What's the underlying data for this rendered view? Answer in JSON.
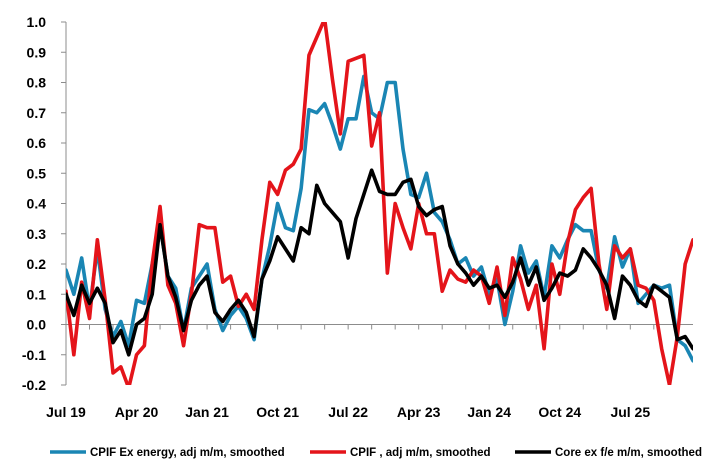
{
  "chart_data": {
    "type": "line",
    "title": "",
    "xlabel": "",
    "ylabel": "",
    "ylim": [
      -0.2,
      1.0
    ],
    "yticks": [
      -0.2,
      -0.1,
      0.0,
      0.1,
      0.2,
      0.3,
      0.4,
      0.5,
      0.6,
      0.7,
      0.8,
      0.9,
      1.0
    ],
    "ytick_labels": [
      "-0.2",
      "-0.1",
      "0.0",
      "0.1",
      "0.2",
      "0.3",
      "0.4",
      "0.5",
      "0.6",
      "0.7",
      "0.8",
      "0.9",
      "1.0"
    ],
    "x_tick_labels": [
      {
        "label": "Jul 19",
        "index": 0
      },
      {
        "label": "Apr 20",
        "index": 9
      },
      {
        "label": "Jan 21",
        "index": 18
      },
      {
        "label": "Oct 21",
        "index": 27
      },
      {
        "label": "Jul 22",
        "index": 36
      },
      {
        "label": "Apr 23",
        "index": 45
      },
      {
        "label": "Jan 24",
        "index": 54
      },
      {
        "label": "Oct 24",
        "index": 63
      },
      {
        "label": "Jul 25",
        "index": 72
      }
    ],
    "n_points": 81,
    "grid": false,
    "legend_position": "bottom",
    "series": [
      {
        "name": "CPIF Ex energy, adj m/m, smoothed",
        "color": "#1a86b4",
        "values": [
          0.18,
          0.1,
          0.22,
          0.05,
          0.25,
          0.05,
          -0.04,
          0.01,
          -0.07,
          0.08,
          0.07,
          0.2,
          0.33,
          0.16,
          0.12,
          -0.02,
          0.12,
          0.16,
          0.2,
          0.05,
          -0.02,
          0.03,
          0.06,
          0.02,
          -0.05,
          0.15,
          0.26,
          0.4,
          0.32,
          0.31,
          0.45,
          0.71,
          0.7,
          0.73,
          0.66,
          0.58,
          0.68,
          0.68,
          0.82,
          0.7,
          0.68,
          0.8,
          0.8,
          0.58,
          0.43,
          0.42,
          0.5,
          0.37,
          0.34,
          0.28,
          0.2,
          0.22,
          0.16,
          0.19,
          0.1,
          0.15,
          0.0,
          0.11,
          0.26,
          0.17,
          0.21,
          0.09,
          0.26,
          0.22,
          0.28,
          0.33,
          0.31,
          0.31,
          0.18,
          0.12,
          0.29,
          0.19,
          0.25,
          0.07,
          0.1,
          0.13,
          0.12,
          0.13,
          -0.05,
          -0.07,
          -0.12
        ]
      },
      {
        "name": "CPIF , adj m/m, smoothed",
        "color": "#e4141a",
        "values": [
          0.11,
          -0.1,
          0.14,
          0.02,
          0.28,
          0.08,
          -0.16,
          -0.14,
          -0.21,
          -0.1,
          -0.07,
          0.2,
          0.39,
          0.13,
          0.07,
          -0.07,
          0.1,
          0.33,
          0.32,
          0.32,
          0.14,
          0.16,
          0.06,
          0.1,
          0.05,
          0.28,
          0.47,
          0.43,
          0.51,
          0.53,
          0.58,
          0.89,
          0.95,
          1.01,
          0.81,
          0.63,
          0.87,
          0.88,
          0.89,
          0.59,
          0.7,
          0.17,
          0.4,
          0.32,
          0.25,
          0.4,
          0.3,
          0.3,
          0.11,
          0.18,
          0.15,
          0.14,
          0.18,
          0.16,
          0.07,
          0.19,
          0.03,
          0.22,
          0.15,
          0.05,
          0.13,
          -0.08,
          0.2,
          0.1,
          0.27,
          0.38,
          0.42,
          0.45,
          0.2,
          0.05,
          0.26,
          0.22,
          0.25,
          0.13,
          0.12,
          0.08,
          -0.08,
          -0.2,
          -0.04,
          0.2,
          0.28
        ]
      },
      {
        "name": "Core ex f/e m/m, smoothed",
        "color": "#000000",
        "values": [
          0.1,
          0.03,
          0.13,
          0.07,
          0.12,
          0.07,
          -0.06,
          -0.02,
          -0.1,
          0.0,
          0.02,
          0.1,
          0.33,
          0.16,
          0.09,
          -0.02,
          0.08,
          0.13,
          0.16,
          0.04,
          0.01,
          0.05,
          0.08,
          0.04,
          -0.04,
          0.15,
          0.21,
          0.29,
          0.25,
          0.21,
          0.32,
          0.3,
          0.46,
          0.4,
          0.37,
          0.34,
          0.22,
          0.35,
          0.43,
          0.51,
          0.44,
          0.43,
          0.43,
          0.47,
          0.48,
          0.39,
          0.36,
          0.38,
          0.39,
          0.26,
          0.2,
          0.17,
          0.13,
          0.16,
          0.12,
          0.13,
          0.09,
          0.14,
          0.22,
          0.13,
          0.19,
          0.08,
          0.12,
          0.17,
          0.16,
          0.18,
          0.25,
          0.22,
          0.18,
          0.13,
          0.02,
          0.16,
          0.13,
          0.08,
          0.06,
          0.13,
          0.11,
          0.09,
          -0.05,
          -0.04,
          -0.08
        ]
      }
    ]
  }
}
